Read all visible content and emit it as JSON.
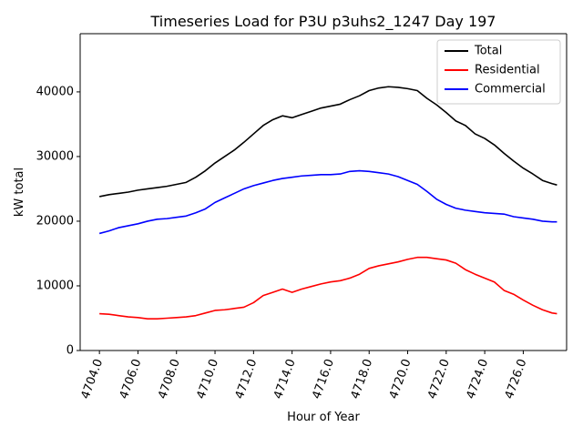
{
  "chart_data": {
    "type": "line",
    "title": "Timeseries Load for P3U p3uhs2_1247  Day 197",
    "xlabel": "Hour of Year",
    "ylabel": "kW total",
    "xlim": [
      4703.0,
      4728.25
    ],
    "ylim": [
      0,
      49000
    ],
    "x_ticks": [
      4704,
      4706,
      4708,
      4710,
      4712,
      4714,
      4716,
      4718,
      4720,
      4722,
      4724,
      4726
    ],
    "x_tick_labels": [
      "4704.0",
      "4706.0",
      "4708.0",
      "4710.0",
      "4712.0",
      "4714.0",
      "4716.0",
      "4718.0",
      "4720.0",
      "4722.0",
      "4724.0",
      "4726.0"
    ],
    "y_ticks": [
      0,
      10000,
      20000,
      30000,
      40000
    ],
    "y_tick_labels": [
      "0",
      "10000",
      "20000",
      "30000",
      "40000"
    ],
    "legend_position": "top-right",
    "x": [
      4704.0,
      4704.5,
      4705.0,
      4705.5,
      4706.0,
      4706.5,
      4707.0,
      4707.5,
      4708.0,
      4708.5,
      4709.0,
      4709.5,
      4710.0,
      4710.5,
      4711.0,
      4711.5,
      4712.0,
      4712.5,
      4713.0,
      4713.5,
      4714.0,
      4714.5,
      4715.0,
      4715.5,
      4716.0,
      4716.5,
      4717.0,
      4717.5,
      4718.0,
      4718.5,
      4719.0,
      4719.5,
      4720.0,
      4720.5,
      4721.0,
      4721.5,
      4722.0,
      4722.5,
      4723.0,
      4723.5,
      4724.0,
      4724.5,
      4725.0,
      4725.5,
      4726.0,
      4726.5,
      4727.0,
      4727.5,
      4727.75
    ],
    "series": [
      {
        "name": "Total",
        "color": "#000000",
        "values": [
          23800,
          24100,
          24300,
          24500,
          24800,
          25000,
          25200,
          25400,
          25700,
          26000,
          26800,
          27800,
          29000,
          30000,
          31000,
          32200,
          33500,
          34800,
          35700,
          36300,
          36000,
          36500,
          37000,
          37500,
          37800,
          38100,
          38800,
          39400,
          40200,
          40600,
          40800,
          40700,
          40500,
          40200,
          39000,
          38000,
          36800,
          35500,
          34800,
          33500,
          32800,
          31800,
          30500,
          29300,
          28200,
          27300,
          26300,
          25800,
          25600
        ]
      },
      {
        "name": "Residential",
        "color": "#ff0000",
        "values": [
          5700,
          5600,
          5400,
          5200,
          5100,
          4900,
          4900,
          5000,
          5100,
          5200,
          5400,
          5800,
          6200,
          6300,
          6500,
          6700,
          7400,
          8500,
          9000,
          9500,
          9000,
          9500,
          9900,
          10300,
          10600,
          10800,
          11200,
          11800,
          12700,
          13100,
          13400,
          13700,
          14100,
          14400,
          14400,
          14200,
          14000,
          13500,
          12500,
          11800,
          11200,
          10600,
          9300,
          8700,
          7800,
          7000,
          6300,
          5800,
          5700
        ]
      },
      {
        "name": "Commercial",
        "color": "#0000ff",
        "values": [
          18100,
          18500,
          19000,
          19300,
          19600,
          20000,
          20300,
          20400,
          20600,
          20800,
          21300,
          21900,
          22900,
          23600,
          24300,
          25000,
          25500,
          25900,
          26300,
          26600,
          26800,
          27000,
          27100,
          27200,
          27200,
          27300,
          27700,
          27800,
          27700,
          27500,
          27300,
          26900,
          26300,
          25700,
          24600,
          23400,
          22600,
          22000,
          21700,
          21500,
          21300,
          21200,
          21100,
          20700,
          20500,
          20300,
          20000,
          19900,
          19900
        ]
      }
    ]
  }
}
